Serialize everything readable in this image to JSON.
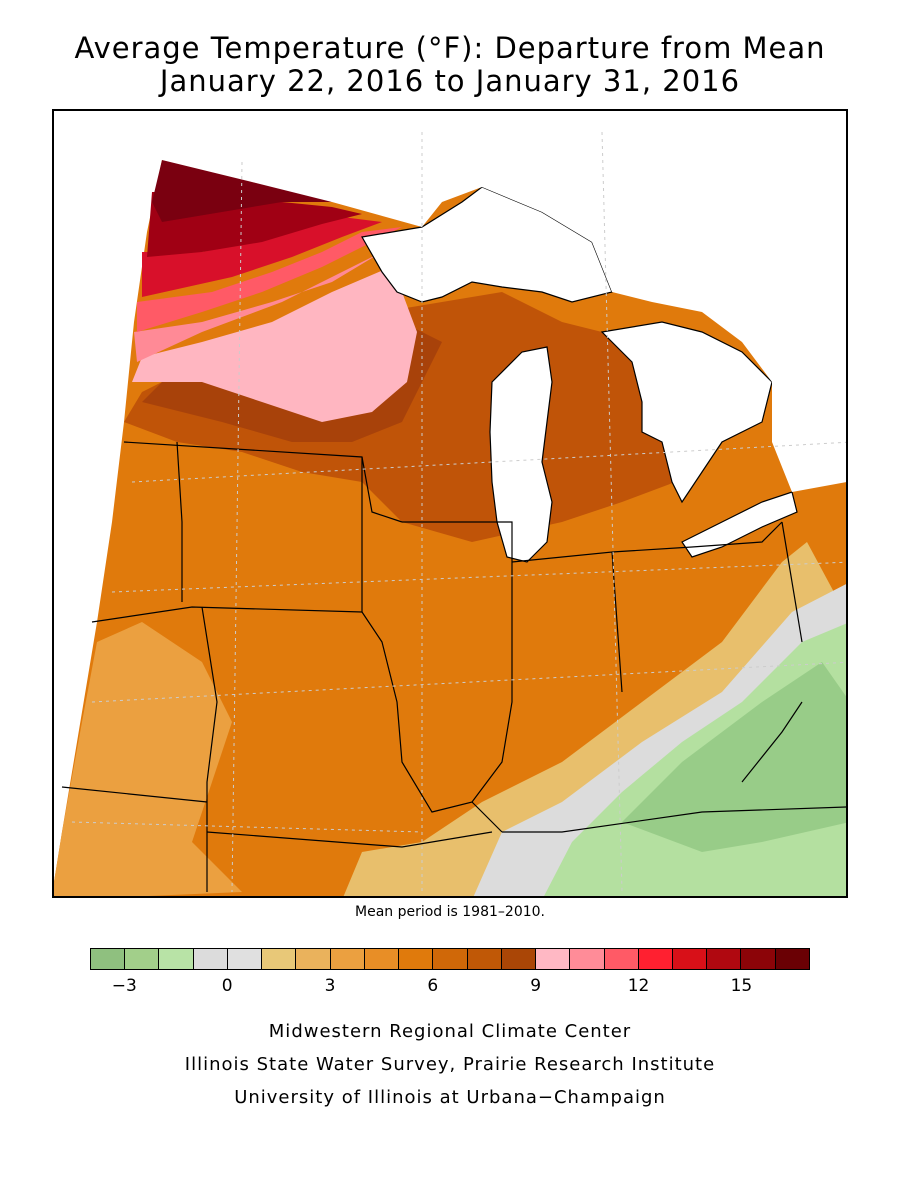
{
  "title": {
    "line1": "Average Temperature (°F): Departure from Mean",
    "line2": "January 22, 2016 to January 31, 2016"
  },
  "map": {
    "region": "Midwest",
    "layer": "temperature-departure-contours",
    "colors": {
      "deep_red": "#7a0010",
      "dark_red": "#a00014",
      "red": "#d8102a",
      "bright_red": "#f02030",
      "rose": "#ff5a66",
      "pink": "#ff8a96",
      "light_pink": "#ffb6c1",
      "rust": "#a8420a",
      "dark_orange": "#c05408",
      "orange": "#d96a08",
      "mid_orange": "#e77f10",
      "light_orange": "#eda240",
      "tan": "#e8bf6c",
      "gray": "#dcdcdc",
      "light_green": "#b4e0a0",
      "green": "#98cc88",
      "dark_green": "#88b878",
      "water": "#ffffff"
    }
  },
  "mean_note": "Mean period is 1981–2010.",
  "legend": {
    "colors": [
      "#8fc07f",
      "#a2cf8a",
      "#b8e3a6",
      "#dcdcdc",
      "#e0e0e0",
      "#e8c878",
      "#eab25c",
      "#eba040",
      "#e88e26",
      "#e07a0c",
      "#d06808",
      "#c05806",
      "#aa4606",
      "#ffb8c4",
      "#ff8c98",
      "#ff5a66",
      "#ff2030",
      "#d81018",
      "#b00810",
      "#8c0408",
      "#6a0004"
    ],
    "tick_labels": [
      "−3",
      "0",
      "3",
      "6",
      "9",
      "12",
      "15"
    ]
  },
  "credits": {
    "line1": "Midwestern Regional Climate Center",
    "line2": "Illinois State Water Survey, Prairie Research Institute",
    "line3": "University of Illinois at Urbana−Champaign"
  }
}
